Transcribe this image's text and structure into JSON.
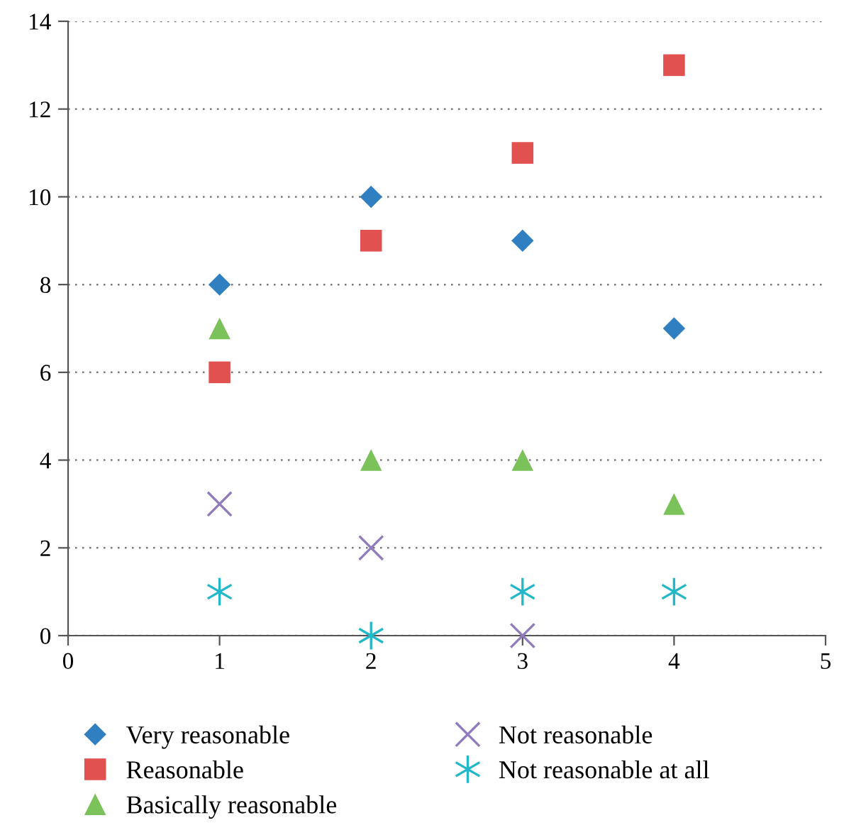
{
  "chart_data": {
    "type": "scatter",
    "x": [
      1,
      2,
      3,
      4
    ],
    "xlim": [
      0,
      5
    ],
    "xticks": [
      0,
      1,
      2,
      3,
      4,
      5
    ],
    "ylim": [
      0,
      14
    ],
    "yticks": [
      0,
      2,
      4,
      6,
      8,
      10,
      12,
      14
    ],
    "grid": "y",
    "legend": "bottom",
    "series": [
      {
        "name": "Very reasonable",
        "color": "#2f7fc1",
        "marker": "diamond",
        "values": [
          8,
          10,
          9,
          7
        ]
      },
      {
        "name": "Reasonable",
        "color": "#e0514f",
        "marker": "square",
        "values": [
          6,
          9,
          11,
          13
        ]
      },
      {
        "name": "Basically reasonable",
        "color": "#7cc25b",
        "marker": "triangle",
        "values": [
          7,
          4,
          4,
          3
        ]
      },
      {
        "name": "Not reasonable",
        "color": "#8f7bbd",
        "marker": "cross",
        "values": [
          3,
          2,
          0,
          null
        ]
      },
      {
        "name": "Not reasonable at all",
        "color": "#22b7c9",
        "marker": "cross",
        "values": [
          1,
          0,
          1,
          1
        ]
      }
    ]
  }
}
